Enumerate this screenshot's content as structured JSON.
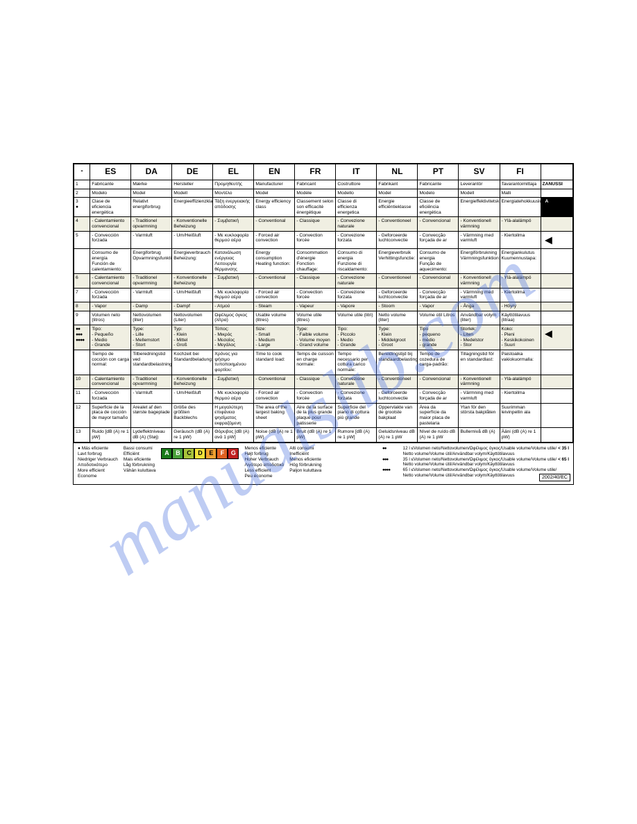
{
  "watermark": "manualslib.com",
  "brand": "ZANUSSI",
  "energy_letter": "A",
  "arrow_glyph": "◄",
  "ec_label": "2002/40/EC",
  "headers": [
    "-",
    "ES",
    "DA",
    "DE",
    "EL",
    "EN",
    "FR",
    "IT",
    "NL",
    "PT",
    "SV",
    "FI",
    ""
  ],
  "rows": [
    {
      "idx": "1",
      "cells": [
        "Fabricante",
        "Mærke",
        "Hersteller",
        "Προμηθευτής",
        "Manufacturer",
        "Fabricant",
        "Costruttore",
        "Fabrikant",
        "Fabricante",
        "Leverantör",
        "Tavarantoimittaja"
      ],
      "side": {
        "type": "brand"
      }
    },
    {
      "idx": "2",
      "cells": [
        "Modelo",
        "Model",
        "Modell",
        "Μοντέλο",
        "Model",
        "Modèle",
        "Modello",
        "Model",
        "Modelo",
        "Modell",
        "Malli"
      ],
      "side": {
        "type": "blank"
      }
    },
    {
      "idx": "3",
      "sym": "●",
      "cells": [
        "Clase de eficiencia energética",
        "Relativt energiforbrug",
        "Energieeffizienzklasse",
        "Τάξη ενεργειακής απόδοσης",
        "Energy efficiency class",
        "Classement selon son efficacité énergétique",
        "Classe di efficienza energetica",
        "Energie efficiëntieklasse",
        "Classe de eficiência energética",
        "Energieffektivitetsklass",
        "Energiatehokkuusluokka"
      ],
      "side": {
        "type": "letter"
      }
    },
    {
      "idx": "4",
      "hl": true,
      "cells": [
        "- Calentamiento convencional",
        "- Traditionel opvarmning",
        "- Konventionelle Beheizung",
        "- Συμβατική",
        "- Conventional",
        "- Classique",
        "- Convezione naturale",
        "- Conventioneel",
        "- Convencional",
        "- Konventionell värmning",
        "- Ylä-alalämpö"
      ],
      "side": {
        "type": "blank",
        "hl": true
      }
    },
    {
      "idx": "5",
      "cells": [
        "- Convección forzada",
        "- Varmluft",
        "- Um/Heißluft",
        "- Με κυκλοφορία θερμού αέρα",
        "- Forced air convection",
        "- Convection forcée",
        "- Convezione forzata",
        "- Geforceerde luchtconvectie",
        "- Convecção forçada de ar",
        "- Värmning med varmluft",
        "- Kiertoilma"
      ],
      "side": {
        "type": "arrow"
      }
    },
    {
      "idx": "",
      "cells": [
        "Consumo de energía\nFunción de calentamiento:",
        "Energiforbrug\nOpvarmningsfunktion:",
        "Energieverbrauch\nBeheizung:",
        "Κατανάλωση ενέργειας\nΛειτουργία θέρμανσης",
        "Energy consumption\nHeating function:",
        "Consommation d'énergie\nFonction chauffage:",
        "Consumo di energia\nFunzione di riscaldamento:",
        "Energieverbruik\nVerhittingsfunctie:",
        "Consumo de energia\nFunção de aquecimento:",
        "Energiförbrukning\nVärmningsfunktion:",
        "Energiankulutus\nKuumennustapa:"
      ],
      "side": {
        "type": "blank"
      }
    },
    {
      "idx": "6",
      "hl": true,
      "cells": [
        "- Calentamiento convencional",
        "- Traditionel opvarmning",
        "- Konventionelle Beheizung",
        "- Συμβατική",
        "- Conventional",
        "- Classique",
        "- Convezione naturale",
        "- Conventioneel",
        "- Convencional",
        "- Konventionell värmning",
        "- Ylä-alalämpö"
      ],
      "side": {
        "type": "blank",
        "hl": true
      }
    },
    {
      "idx": "7",
      "cells": [
        "- Convección forzada",
        "- Varmluft",
        "- Um/Heißluft",
        "- Με κυκλοφορία θερμού αέρα",
        "- Forced air convection",
        "- Convection forcée",
        "- Convezione forzata",
        "- Geforceerde luchtconvectie",
        "- Convecção forçada de ar",
        "- Värmning med varmluft",
        "- Kiertoilma"
      ],
      "side": {
        "type": "blank"
      }
    },
    {
      "idx": "8",
      "hl": true,
      "cells": [
        "- Vapor",
        "- Damp",
        "- Dampf",
        "- Ατμού",
        "- Steam",
        "- Vapeur",
        "- Vapore",
        "- Stoom",
        "- Vapor",
        "- Ånga",
        "- Höyry"
      ],
      "side": {
        "type": "blank",
        "hl": true
      }
    },
    {
      "idx": "9",
      "cells": [
        "Volumen neto (litros)",
        "Nettovolumen (liter)",
        "Nettovolumen (Liter)",
        "Ωφέλιμος όγκος (λίτρα)",
        "Usable volume (litres)",
        "Volume utile (litres)",
        "Volume utile (litri)",
        "Netto volume (liter)",
        "Volume útil Litros",
        "Användbar volym (liter)",
        "Käyttötilavuus (litraa)"
      ],
      "side": {
        "type": "blank"
      }
    },
    {
      "idx": "",
      "sym": "●●\n●●●\n●●●●",
      "hl": true,
      "cells": [
        "Tipo:\n- Pequeño\n- Medio\n- Grande",
        "Type:\n- Lille\n- Mellemstort\n- Stort",
        "Typ:\n- Klein\n- Mittel\n- Groß",
        "Τύπος:\n- Μικρός\n- Μεσαίος\n- Μεγάλος",
        "Size:\n- Small\n- Medium\n- Large",
        "Type:\n- Faible volume\n- Volume moyen\n- Grand volume",
        "Tipo:\n- Piccolo\n- Medio\n- Grande",
        "Type:\n- Klein\n- Middelgroot\n- Groot",
        "Tipo\n- pequeno\n- médio\n- grande",
        "Storlek:\n- Liten\n- Medelstor\n- Stor",
        "Koko:\n- Pieni\n- Keskikokoinen\n- Suuri"
      ],
      "side": {
        "type": "arrow",
        "hl": true
      }
    },
    {
      "idx": "",
      "cells": [
        "Tiempo de cocción con carga normal:",
        "Tilberedningstid ved standardbelastning:",
        "Kochzeit bei Standardbeladung:",
        "Χρόνος για ψήσιμο τυποποιημένου φορτίου:",
        "Time to cook standard load:",
        "Temps de cuisson en charge normale:",
        "Tempo necessario per cottura carico normale:",
        "Bereidingstijd bij standaardbelasting:",
        "Tempo de cozedura de carga-padrão:",
        "Tillagningstid för en standardlast:",
        "Paistoaika vakiokuormalla:"
      ],
      "side": {
        "type": "blank"
      }
    },
    {
      "idx": "10",
      "hl": true,
      "cells": [
        "- Calentamiento convencional",
        "- Traditionel opvarmning",
        "- Konventionelle Beheizung",
        "- Συμβατική",
        "- Conventional",
        "- Classique",
        "- Convezione naturale",
        "- Conventioneel",
        "- Convencional",
        "- Konventionell värmning",
        "- Ylä-alalämpö"
      ],
      "side": {
        "type": "blank",
        "hl": true
      }
    },
    {
      "idx": "11",
      "cells": [
        "- Convección forzada",
        "- Varmluft",
        "- Um/Heißluft",
        "- Με κυκλοφορία θερμού αέρα",
        "- Forced air convection",
        "- Convection forcée",
        "- Convezione forzata",
        "- Geforceerde luchtconvectie",
        "- Convecção forçada de ar",
        "- Värmning med varmluft",
        "- Kiertoilma"
      ],
      "side": {
        "type": "blank"
      }
    },
    {
      "idx": "12",
      "cells": [
        "Superficie de la placa de cocción de mayor tamaño",
        "Arealet af den største bageplade",
        "Größe des größten Backblechs",
        "Η μεγαλύτερη επιφάνεια ψησίματος εκφραζόμενη",
        "The area of the largest baking sheet",
        "Aire de la surface de la plus grande plaque pour patisserie",
        "Superficie del piano di cottura più grande",
        "Oppervlakte van de grootste bakplaat",
        "Área da superfície da maior placa de pastelaria",
        "Ytan för den största bakplåten",
        "Suurimman leivinpellin ala"
      ],
      "side": {
        "type": "blank"
      }
    },
    {
      "idx": "13",
      "cells": [
        "Ruido [dB (A) re 1 pW]",
        "Lydeffektniveau dB (A) (Støj)",
        "Geräusch (dB (A) re 1 pW)",
        "Θόρυβος [dB (A) ανά 1 pW]",
        "Noise (dB (A) re 1 pW)",
        "Bruit (dB (A) re 1 pW)",
        "Rumore [dB (A) re 1 pW]",
        "Geluidsniveau dB (A) re 1 pW",
        "Nível de ruído dB (A) re 1 pW",
        "Bullernivå dB (A)",
        "Ääni (dB (A) re 1 pW)"
      ],
      "side": {
        "type": "blank"
      }
    }
  ],
  "footer": {
    "left_col1": [
      "● Más eficiente",
      "Lavt forbrug",
      "Niedriger Verbrauch",
      "Αποδοτικότερο",
      "More efficient",
      "Econome"
    ],
    "left_col2": [
      "Bassi consumi",
      "Efficiënt",
      "Mais eficiente",
      "Låg förbrukning",
      "Vähän kuluttava"
    ],
    "mid_col1": [
      "Menos eficiente",
      "Højt forbrug",
      "Hoher Verbrauch",
      "Λιγότερο αποδοτικό",
      "Less efficient",
      "Peu économe"
    ],
    "mid_col2": [
      "Alti consumi",
      "Inefficiënt",
      "Menos eficiente",
      "Hög förbrukning",
      "Paljon kuluttava"
    ],
    "rating_letters": [
      "A",
      "B",
      "C",
      "D",
      "E",
      "F",
      "G"
    ],
    "right_lines": [
      {
        "dots": "●●",
        "text": "12 l ≤Volumen neto/Nettovolumen/Ωφέλιμος όγκος/Usable volume/Volume utile/",
        "lim": "< 35 l"
      },
      {
        "dots": "",
        "text": "Netto volume/Volume útil/Användbar volym/Käyttötilavuus",
        "lim": ""
      },
      {
        "dots": "●●●",
        "text": "35 l ≤Volumen neto/Nettovolumen/Ωφέλιμος όγκος/Usable volume/Volume utile/",
        "lim": "< 65 l"
      },
      {
        "dots": "",
        "text": "Netto volume/Volume útil/Användbar volym/Käyttötilavuus",
        "lim": ""
      },
      {
        "dots": "●●●●",
        "text": "65 l ≤Volumen neto/Nettovolumen/Ωφέλιμος όγκος/Usable volume/Volume utile/",
        "lim": ""
      },
      {
        "dots": "",
        "text": "Netto volume/Volume útil/Användbar volym/Käyttötilavuus",
        "lim": ""
      }
    ]
  }
}
